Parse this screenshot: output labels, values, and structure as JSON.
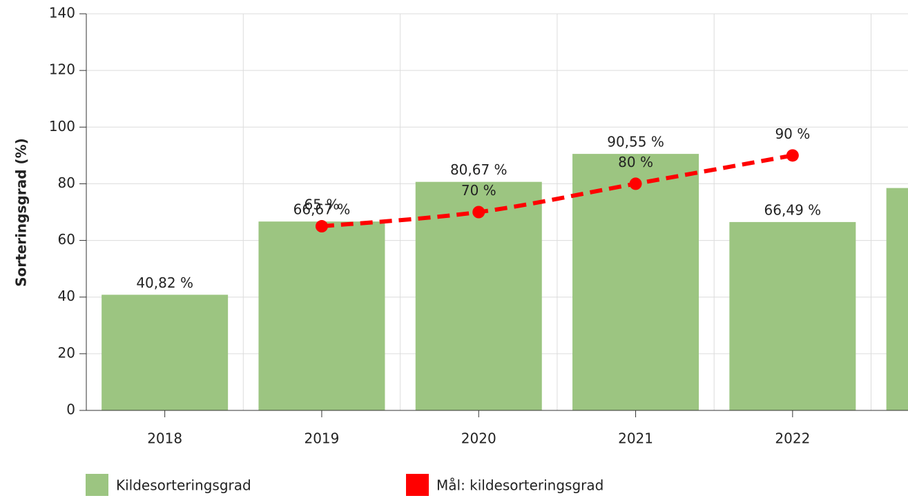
{
  "chart_data": {
    "type": "bar",
    "y_label": "Sorteringsgrad (%)",
    "categories": [
      "2018",
      "2019",
      "2020",
      "2021",
      "2022",
      null
    ],
    "series": [
      {
        "name": "Kildesorteringsgrad",
        "type": "bar",
        "color": "#9cc581",
        "values": [
          40.82,
          66.67,
          80.67,
          90.55,
          66.49,
          78.5
        ],
        "value_labels": [
          "40,82 %",
          "66,67 %",
          "80,67 %",
          "90,55 %",
          "66,49 %",
          null
        ]
      },
      {
        "name": "Mål: kildesorteringsgrad",
        "type": "line",
        "color": "#ff0000",
        "values": [
          null,
          65,
          70,
          80,
          90,
          null
        ],
        "value_labels": [
          null,
          "65 %",
          "70 %",
          "80 %",
          "90 %",
          null
        ]
      }
    ],
    "ylim": [
      0,
      140
    ],
    "yticks": [
      0,
      20,
      40,
      60,
      80,
      100,
      120,
      140
    ],
    "grid": true
  }
}
